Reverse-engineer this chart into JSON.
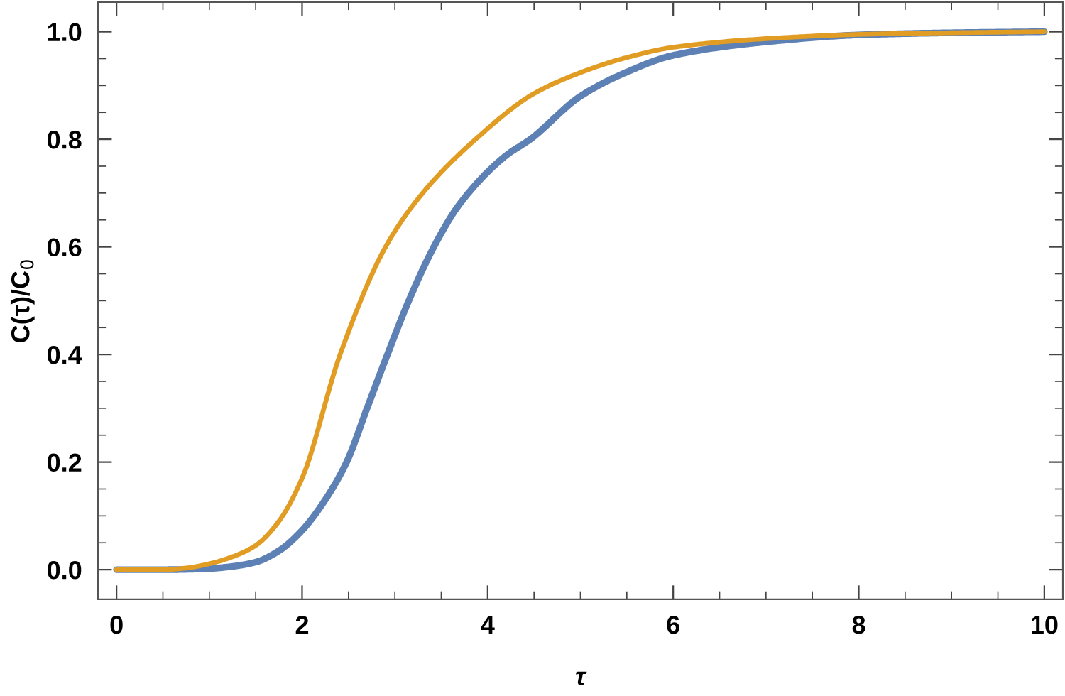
{
  "chart_data": {
    "type": "line",
    "xlabel": "τ",
    "ylabel": "C(τ)/C$_{0}$",
    "xlim": [
      -0.2,
      10.2
    ],
    "ylim": [
      -0.055,
      1.055
    ],
    "xticks": [
      0,
      {
        "value": 0.5,
        "label": null
      },
      {
        "value": 1,
        "label": null
      },
      {
        "value": 1.5,
        "label": null
      },
      2,
      {
        "value": 2.5,
        "label": null
      },
      {
        "value": 3,
        "label": null
      },
      {
        "value": 3.5,
        "label": null
      },
      4,
      {
        "value": 4.5,
        "label": null
      },
      {
        "value": 5,
        "label": null
      },
      {
        "value": 5.5,
        "label": null
      },
      6,
      {
        "value": 6.5,
        "label": null
      },
      {
        "value": 7,
        "label": null
      },
      {
        "value": 7.5,
        "label": null
      },
      8,
      {
        "value": 8.5,
        "label": null
      },
      {
        "value": 9,
        "label": null
      },
      {
        "value": 9.5,
        "label": null
      },
      10
    ],
    "yticks": [
      {
        "value": 0,
        "label": "0.0"
      },
      {
        "value": 0.05,
        "label": null
      },
      {
        "value": 0.1,
        "label": null
      },
      {
        "value": 0.15,
        "label": null
      },
      {
        "value": 0.2,
        "label": "0.2"
      },
      {
        "value": 0.25,
        "label": null
      },
      {
        "value": 0.3,
        "label": null
      },
      {
        "value": 0.35,
        "label": null
      },
      {
        "value": 0.4,
        "label": "0.4"
      },
      {
        "value": 0.45,
        "label": null
      },
      {
        "value": 0.5,
        "label": null
      },
      {
        "value": 0.55,
        "label": null
      },
      {
        "value": 0.6,
        "label": "0.6"
      },
      {
        "value": 0.65,
        "label": null
      },
      {
        "value": 0.7,
        "label": null
      },
      {
        "value": 0.75,
        "label": null
      },
      {
        "value": 0.8,
        "label": "0.8"
      },
      {
        "value": 0.85,
        "label": null
      },
      {
        "value": 0.9,
        "label": null
      },
      {
        "value": 0.95,
        "label": null
      },
      {
        "value": 1,
        "label": "1.0"
      }
    ],
    "grid": false,
    "marker": "none",
    "line_style": "solid",
    "series": [
      {
        "color": "#5e81b5",
        "x": [
          0,
          0.5,
          1,
          1.2,
          1.5,
          1.75,
          2,
          2.25,
          2.48,
          2.7,
          2.92,
          3.15,
          3.42,
          3.7,
          4.2,
          4.46,
          5,
          5.5,
          6,
          7,
          8,
          9,
          10
        ],
        "values": [
          0,
          0,
          0.002,
          0.005,
          0.014,
          0.035,
          0.073,
          0.13,
          0.2,
          0.3,
          0.4,
          0.5,
          0.6,
          0.68,
          0.77,
          0.8,
          0.88,
          0.925,
          0.956,
          0.981,
          0.994,
          0.998,
          1.0
        ]
      },
      {
        "color": "#e19c24",
        "x": [
          0,
          0.5,
          0.75,
          1,
          1.25,
          1.5,
          1.75,
          2,
          2.41,
          2.9,
          3.3,
          3.87,
          4.5,
          5,
          5.5,
          6,
          7,
          8,
          9,
          10
        ],
        "values": [
          0,
          0,
          0.003,
          0.011,
          0.024,
          0.045,
          0.09,
          0.17,
          0.4,
          0.6,
          0.7,
          0.8,
          0.885,
          0.924,
          0.952,
          0.971,
          0.987,
          0.995,
          0.998,
          1.0
        ]
      }
    ]
  }
}
